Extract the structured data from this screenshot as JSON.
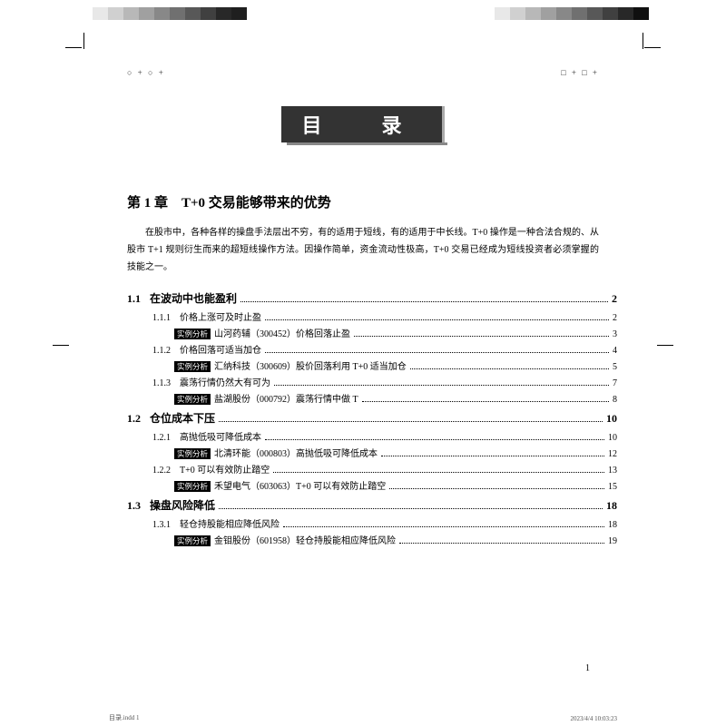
{
  "color_bar": {
    "left": [
      "#ffffff",
      "#e8e8e8",
      "#d0d0d0",
      "#b8b8b8",
      "#a0a0a0",
      "#888888",
      "#707070",
      "#585858",
      "#404040",
      "#282828",
      "#1f1f1f"
    ],
    "right": [
      "#ffffff",
      "#e8e8e8",
      "#d0d0d0",
      "#b8b8b8",
      "#a0a0a0",
      "#888888",
      "#707070",
      "#585858",
      "#404040",
      "#282828",
      "#101010"
    ]
  },
  "header_marks": {
    "left": "○ + ○ +",
    "right": "□ + □ +"
  },
  "title": "目　录",
  "chapter": {
    "title": "第 1 章　T+0 交易能够带来的优势",
    "intro": "在股市中，各种各样的操盘手法层出不穷，有的适用于短线，有的适用于中长线。T+0 操作是一种合法合规的、从股市 T+1 规则衍生而来的超短线操作方法。因操作简单，资金流动性极高，T+0 交易已经成为短线投资者必须掌握的技能之一。"
  },
  "toc": {
    "s1": {
      "num": "1.1",
      "title": "在波动中也能盈利",
      "page": "2"
    },
    "s1_1": {
      "num": "1.1.1",
      "title": "价格上涨可及时止盈",
      "page": "2"
    },
    "e1_1": {
      "tag": "实例分析",
      "text": "山河药辅（300452）价格回落止盈",
      "page": "3"
    },
    "s1_2": {
      "num": "1.1.2",
      "title": "价格回落可适当加仓",
      "page": "4"
    },
    "e1_2": {
      "tag": "实例分析",
      "text": "汇纳科技（300609）股价回落利用 T+0 适当加仓",
      "page": "5"
    },
    "s1_3": {
      "num": "1.1.3",
      "title": "震荡行情仍然大有可为",
      "page": "7"
    },
    "e1_3": {
      "tag": "实例分析",
      "text": "盐湖股份（000792）震荡行情中做 T",
      "page": "8"
    },
    "s2": {
      "num": "1.2",
      "title": "仓位成本下压",
      "page": "10"
    },
    "s2_1": {
      "num": "1.2.1",
      "title": "高抛低吸可降低成本",
      "page": "10"
    },
    "e2_1": {
      "tag": "实例分析",
      "text": "北清环能（000803）高抛低吸可降低成本",
      "page": "12"
    },
    "s2_2": {
      "num": "1.2.2",
      "title": "T+0 可以有效防止踏空",
      "page": "13"
    },
    "e2_2": {
      "tag": "实例分析",
      "text": "禾望电气（603063）T+0 可以有效防止踏空",
      "page": "15"
    },
    "s3": {
      "num": "1.3",
      "title": "操盘风险降低",
      "page": "18"
    },
    "s3_1": {
      "num": "1.3.1",
      "title": "轻仓持股能相应降低风险",
      "page": "18"
    },
    "e3_1": {
      "tag": "实例分析",
      "text": "金钼股份（601958）轻仓持股能相应降低风险",
      "page": "19"
    }
  },
  "page_num": "1",
  "footer": {
    "file": "目录.indd   1",
    "date": "2023/4/4   10:03:23"
  }
}
